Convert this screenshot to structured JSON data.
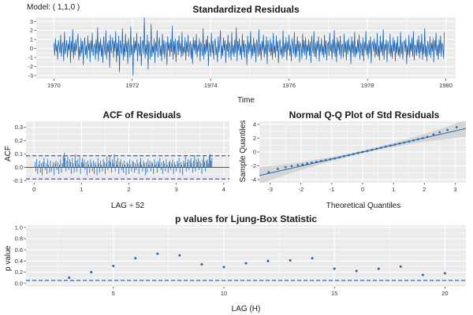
{
  "model_label": "Model: ( 1,1,0 )",
  "style": {
    "panel_bg": "#ebebeb",
    "grid": "#ffffff",
    "series": "#1f65b0",
    "ci_band": "#d3d3d3"
  },
  "chart_data": [
    {
      "id": "std-residuals",
      "type": "line",
      "title": "Standardized Residuals",
      "xlabel": "Time",
      "ylabel": "",
      "xlim": [
        1969.55,
        1980.25
      ],
      "ylim": [
        -3.35,
        3.45
      ],
      "xticks": [
        1970,
        1972,
        1974,
        1976,
        1978,
        1980
      ],
      "yticks": [
        -3,
        -2,
        -1,
        0,
        1,
        2,
        3
      ],
      "grid": true,
      "series": [
        {
          "start": 1970.0,
          "step": 0.01923,
          "values": [
            0.6,
            -0.8,
            1.1,
            -0.3,
            0.4,
            -1.2,
            0.9,
            0.2,
            -0.5,
            1.5,
            -0.9,
            0.3,
            0.7,
            -1.4,
            1.8,
            -0.6,
            0.1,
            0.9,
            -1.0,
            0.5,
            -0.2,
            1.3,
            -1.6,
            0.8,
            -0.4,
            2.1,
            -1.1,
            0.6,
            -0.7,
            1.0,
            -0.3,
            0.5,
            1.6,
            -1.3,
            0.2,
            -0.9,
            1.1,
            -0.5,
            0.8,
            -1.8,
            0.4,
            1.2,
            -0.7,
            0.3,
            -1.1,
            1.4,
            -0.2,
            0.6,
            -1.5,
            0.9,
            -0.4,
            1.7,
            -0.8,
            0.2,
            0.5,
            -1.2,
            1.0,
            -0.6,
            2.3,
            -1.4,
            0.7,
            -0.3,
            1.1,
            -0.9,
            0.4,
            -1.6,
            1.3,
            0.1,
            -0.7,
            2.0,
            -1.2,
            0.6,
            -0.4,
            0.9,
            -2.1,
            1.5,
            -0.5,
            0.3,
            1.2,
            -1.0,
            0.8,
            -0.3,
            1.9,
            -1.5,
            0.6,
            -0.8,
            1.4,
            -2.6,
            0.9,
            0.2,
            -0.6,
            2.2,
            -1.3,
            0.5,
            -0.9,
            1.6,
            -0.4,
            0.7,
            -1.7,
            1.1,
            0.3,
            -1.0,
            2.4,
            -0.7,
            0.4,
            -3.0,
            1.2,
            -0.5,
            0.8,
            -0.2,
            1.7,
            -1.4,
            0.6,
            0.2,
            -0.8,
            1.3,
            -1.9,
            0.5,
            0.9,
            -0.6,
            3.4,
            -1.1,
            0.4,
            -0.7,
            1.5,
            -2.3,
            0.8,
            0.1,
            -1.2,
            2.7,
            -0.9,
            0.3,
            -0.5,
            1.1,
            -1.6,
            0.7,
            -0.3,
            2.0,
            -1.0,
            0.5,
            1.2,
            -0.8,
            0.3,
            -1.4,
            1.6,
            -0.6,
            0.9,
            -1.1,
            0.4,
            0.7,
            -1.8,
            1.3,
            -0.2,
            0.6,
            -0.9,
            1.0,
            -0.4,
            2.5,
            -1.2,
            0.8,
            -0.6,
            1.1,
            -1.5,
            0.3,
            0.9,
            -0.7,
            1.4,
            -0.3,
            0.6,
            -1.0,
            1.8,
            -0.8,
            0.2,
            -0.5,
            1.2,
            -1.3,
            0.7,
            -0.4,
            1.5,
            -0.9,
            0.3,
            0.8,
            -1.1,
            0.5,
            -1.7,
            1.2,
            -0.2,
            0.9,
            -0.6,
            1.6,
            -1.0,
            0.4,
            -0.3,
            1.1,
            -1.4,
            0.7,
            0.2,
            -0.8,
            2.2,
            -1.2,
            0.5,
            -0.6,
            1.0,
            -0.3,
            1.4,
            -1.9,
            0.6,
            0.3,
            -0.9,
            1.7,
            -0.5,
            0.8,
            -1.2,
            0.4,
            1.1,
            -0.7,
            0.2,
            -1.5,
            1.3,
            -0.4,
            0.6,
            2.0,
            -1.1,
            0.3,
            -0.8,
            1.2,
            -0.2,
            0.9,
            -1.6,
            0.5,
            -0.3,
            1.5,
            -1.0,
            0.7,
            0.1,
            -1.3,
            1.8,
            -0.6,
            0.4,
            -0.9,
            1.0,
            -0.5,
            2.3,
            -1.4,
            0.8,
            -0.2,
            1.1,
            -0.7,
            0.3,
            -1.2,
            1.6,
            -0.4,
            0.9,
            -1.0,
            0.5,
            0.2,
            -1.8,
            1.4,
            -0.6,
            0.7,
            -0.3,
            1.9,
            -1.1,
            0.4,
            -0.8,
            1.2,
            -0.5,
            0.6,
            -1.5,
            1.0,
            0.3,
            -0.9,
            2.1,
            -0.7,
            0.5,
            -1.3,
            0.8,
            -0.2,
            1.5,
            -1.0,
            0.4,
            -0.6,
            1.3,
            -1.7,
            0.9,
            0.1,
            -0.4,
            1.1,
            -0.8,
            0.6,
            -1.2,
            1.7,
            -0.5,
            0.3,
            -1.0,
            1.4,
            -0.3,
            0.8,
            -1.6,
            0.5,
            1.0,
            -0.7,
            0.2,
            -1.1,
            2.0,
            -0.9,
            0.6,
            -0.4,
            1.2,
            -1.3,
            0.7,
            -0.2,
            1.5,
            -0.8,
            0.4,
            -1.4,
            1.1,
            0.3,
            -0.6,
            1.8,
            -1.0,
            0.5,
            -0.9,
            1.3,
            -0.3,
            0.8,
            -1.5,
            0.6,
            0.2,
            -1.1,
            1.6,
            -0.5,
            0.9,
            -0.7,
            1.2,
            -1.2,
            0.4,
            -0.3,
            1.0,
            -0.8,
            0.7,
            -1.6,
            1.4,
            0.1,
            -0.5,
            1.9,
            -0.9,
            0.6,
            -1.1,
            0.8,
            -0.2,
            1.3,
            -1.4,
            0.5,
            -0.4,
            1.1,
            -0.7,
            0.3,
            -1.0,
            1.5,
            -0.6,
            0.9,
            -1.3,
            0.4,
            0.7,
            -0.8,
            1.7,
            -0.3,
            0.5,
            -1.2,
            1.0,
            -0.5,
            2.0,
            -0.9,
            0.6,
            -1.5,
            1.2,
            -0.2,
            0.8,
            -0.7,
            1.4,
            -1.1,
            0.3,
            0.5,
            -1.0,
            1.6,
            -0.4,
            0.7,
            -1.3,
            0.9,
            -0.6,
            1.1,
            -0.3,
            0.4,
            -1.7,
            1.3,
            -0.5,
            0.8,
            -0.9,
            1.8,
            -1.0,
            0.2,
            -0.6,
            1.0,
            -0.4,
            1.5,
            -1.2,
            0.6,
            0.3,
            -0.8,
            1.2,
            -1.4,
            0.7,
            -0.2,
            1.9,
            -0.7,
            0.5,
            -1.1,
            0.9,
            -0.5,
            1.3,
            -1.6,
            0.4,
            0.8,
            -0.3,
            1.1,
            -1.0,
            0.6,
            -0.7,
            1.7,
            -0.9,
            0.3,
            -1.3,
            1.4,
            -0.4,
            0.7,
            -0.8,
            2.1,
            -1.2,
            0.5,
            -0.2,
            1.0,
            -1.5,
            0.8,
            0.1,
            -0.6,
            1.6,
            -0.9,
            0.4,
            -1.1,
            1.2,
            -0.3,
            0.9,
            -1.4,
            0.6,
            -0.5,
            1.3,
            -0.8,
            0.2,
            -1.0,
            1.8,
            -0.6,
            0.7,
            -1.2,
            0.5,
            0.9,
            -0.4,
            1.1,
            -1.7,
            0.3,
            -0.7,
            1.5,
            -1.0,
            0.6,
            -0.3,
            1.2,
            -0.9,
            1.9,
            -1.3,
            0.4,
            0.2,
            -0.8,
            1.0,
            -0.5,
            1.4,
            -1.1,
            0.7,
            -0.4,
            1.6,
            -1.2,
            0.5,
            -0.6,
            2.2,
            -0.9,
            0.3,
            -1.4,
            0.8,
            0.1,
            -0.7,
            1.3,
            -1.0,
            0.6,
            -0.3,
            1.1,
            -1.5,
            0.9,
            -0.2,
            1.7,
            -0.8,
            0.4,
            -1.2,
            1.0,
            -0.5,
            1.4,
            -0.9,
            0.6,
            0.3,
            -1.1,
            1.8
          ]
        }
      ]
    },
    {
      "id": "acf-residuals",
      "type": "bar",
      "title": "ACF of Residuals",
      "xlabel": "LAG ÷ 52",
      "ylabel": "ACF",
      "xlim": [
        -0.17,
        4.12
      ],
      "ylim": [
        -0.115,
        0.345
      ],
      "xticks": [
        0,
        1,
        2,
        3,
        4
      ],
      "yticks": [
        -0.1,
        0.0,
        0.1,
        0.2,
        0.3
      ],
      "ytick_labels": [
        "-0.1",
        "0.0",
        "0.1",
        "0.2",
        "0.3"
      ],
      "grid": true,
      "ci": 0.087,
      "lag_start": 0.01923,
      "lag_step": 0.01923,
      "values": [
        0.04,
        -0.03,
        0.06,
        -0.05,
        0.02,
        0.05,
        -0.04,
        0.03,
        -0.06,
        0.04,
        0.07,
        -0.02,
        0.03,
        -0.05,
        0.06,
        0.02,
        -0.04,
        0.05,
        -0.03,
        0.01,
        0.04,
        -0.06,
        0.03,
        0.05,
        -0.02,
        0.04,
        -0.05,
        0.02,
        0.06,
        -0.04,
        0.03,
        0.09,
        0.11,
        0.07,
        -0.03,
        0.05,
        0.08,
        -0.02,
        0.06,
        0.04,
        -0.05,
        0.07,
        0.03,
        -0.04,
        0.1,
        0.05,
        -0.03,
        0.06,
        0.02,
        0.08,
        -0.05,
        0.04,
        0.07,
        0.03,
        0.06,
        -0.02,
        0.04,
        -0.06,
        0.05,
        0.02,
        -0.04,
        0.06,
        0.03,
        -0.03,
        0.05,
        -0.05,
        0.04,
        0.02,
        -0.06,
        0.07,
        0.03,
        -0.04,
        0.05,
        0.02,
        -0.03,
        0.06,
        0.04,
        -0.05,
        0.03,
        0.08,
        -0.02,
        0.05,
        0.09,
        0.04,
        -0.04,
        0.06,
        0.03,
        0.1,
        -0.03,
        0.05,
        0.02,
        0.07,
        -0.05,
        0.04,
        0.06,
        -0.02,
        0.03,
        -0.04,
        0.05,
        0.02,
        -0.06,
        0.04,
        0.03,
        -0.05,
        0.06,
        0.02,
        -0.03,
        0.05,
        0.04,
        -0.04,
        0.03,
        -0.02,
        0.06,
        0.03,
        -0.05,
        0.04,
        0.07,
        0.02,
        -0.03,
        0.05,
        0.03,
        -0.06,
        0.04,
        -0.04,
        0.06,
        0.02,
        0.05,
        -0.03,
        0.04,
        0.03,
        -0.05,
        0.06,
        0.02,
        0.04,
        -0.04,
        0.05,
        0.03,
        0.07,
        -0.02,
        0.04,
        -0.05,
        0.05,
        0.03,
        -0.03,
        0.06,
        0.02,
        -0.04,
        0.04,
        0.05,
        -0.02,
        0.03,
        0.06,
        -0.05,
        0.04,
        0.02,
        -0.03,
        0.05,
        0.03,
        0.07,
        -0.04,
        0.04,
        0.02,
        -0.06,
        0.05,
        0.03,
        0.08,
        -0.03,
        0.04,
        0.06,
        -0.02,
        0.05,
        0.07,
        0.03,
        -0.04,
        0.05,
        0.09,
        -0.03,
        0.06,
        0.04,
        0.07,
        -0.02,
        0.05,
        0.03,
        -0.05,
        0.06,
        0.08,
        0.04,
        -0.03,
        0.05,
        0.06,
        0.03,
        0.08,
        0.1,
        0.05,
        0.07
      ]
    },
    {
      "id": "qq-plot",
      "type": "scatter",
      "title": "Normal Q-Q Plot of Std Residuals",
      "xlabel": "Theoretical Quantiles",
      "ylabel": "Sample Quantiles",
      "xlim": [
        -3.35,
        3.35
      ],
      "ylim": [
        -4.45,
        4.45
      ],
      "xticks": [
        -3,
        -2,
        -1,
        0,
        1,
        2,
        3
      ],
      "yticks": [
        -4,
        -2,
        0,
        2,
        4
      ],
      "grid": true,
      "reference_line": {
        "intercept": 0.0,
        "slope": 1.02
      },
      "band": {
        "half_width_center": 0.22,
        "growth": 0.09
      },
      "points": {
        "x": [
          -3.05,
          -2.75,
          -2.5,
          -2.3,
          -2.1,
          -1.95,
          -1.8,
          -1.65,
          -1.5,
          -1.35,
          -1.2,
          -1.05,
          -0.9,
          -0.75,
          -0.6,
          -0.45,
          -0.3,
          -0.15,
          0.0,
          0.15,
          0.3,
          0.45,
          0.6,
          0.75,
          0.9,
          1.05,
          1.2,
          1.35,
          1.5,
          1.65,
          1.8,
          1.95,
          2.1,
          2.3,
          2.5,
          2.75,
          3.05
        ],
        "y": [
          -2.9,
          -2.45,
          -2.2,
          -2.05,
          -1.9,
          -1.8,
          -1.65,
          -1.55,
          -1.42,
          -1.3,
          -1.18,
          -1.05,
          -0.92,
          -0.78,
          -0.62,
          -0.46,
          -0.3,
          -0.15,
          0.0,
          0.15,
          0.31,
          0.47,
          0.62,
          0.78,
          0.93,
          1.08,
          1.22,
          1.37,
          1.52,
          1.68,
          1.85,
          2.02,
          2.2,
          2.55,
          2.85,
          3.2,
          3.6
        ]
      }
    },
    {
      "id": "ljung-box",
      "type": "scatter",
      "title": "p values for Ljung-Box Statistic",
      "xlabel": "LAG (H)",
      "ylabel": "p value",
      "xlim": [
        1.05,
        20.95
      ],
      "ylim": [
        -0.06,
        1.04
      ],
      "xticks": [
        5,
        10,
        15,
        20
      ],
      "yticks": [
        0.0,
        0.2,
        0.4,
        0.6,
        0.8,
        1.0
      ],
      "ytick_labels": [
        "0.0",
        "0.2",
        "0.4",
        "0.6",
        "0.8",
        "1.0"
      ],
      "grid": true,
      "threshold": 0.05,
      "points": {
        "x": [
          3,
          4,
          5,
          6,
          7,
          8,
          9,
          10,
          11,
          12,
          13,
          14,
          15,
          16,
          17,
          18,
          19,
          20
        ],
        "y": [
          0.1,
          0.2,
          0.31,
          0.45,
          0.53,
          0.5,
          0.34,
          0.29,
          0.36,
          0.4,
          0.41,
          0.45,
          0.26,
          0.22,
          0.26,
          0.3,
          0.15,
          0.18
        ]
      }
    }
  ]
}
